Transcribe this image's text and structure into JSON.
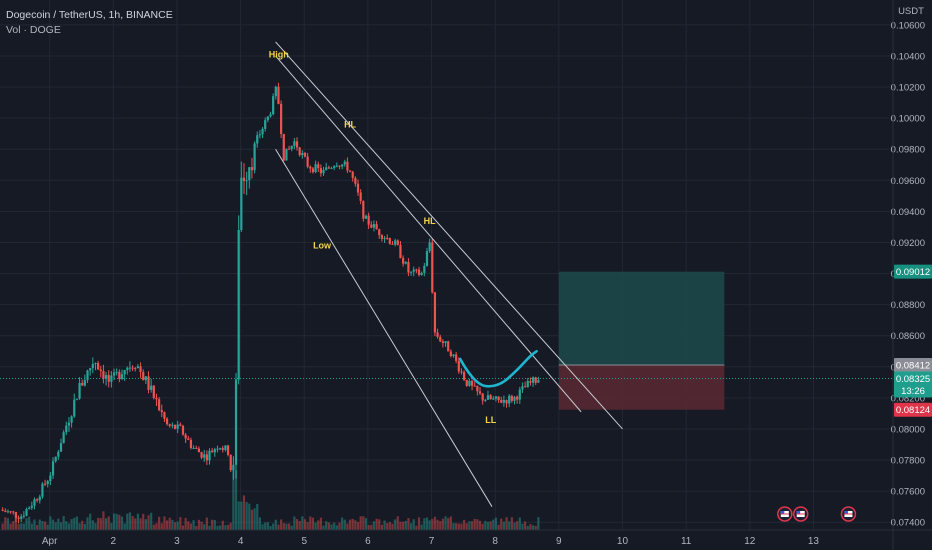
{
  "header": {
    "title": "Dogecoin / TetherUS, 1h, BINANCE",
    "volume_label": "Vol · DOGE"
  },
  "price_axis": {
    "unit": "USDT"
  },
  "colors": {
    "background": "#161a25",
    "up": "#26a69a",
    "down": "#ef5350",
    "grid": "#232734",
    "channel": "#c9cbd1",
    "cup": "#1fb6d0",
    "annotation": "#f5d547",
    "profit_zone": "#1c4a4a",
    "loss_zone": "#5a2a33"
  },
  "annotations": [
    {
      "text": "High",
      "x": 4.6,
      "y": 0.1039
    },
    {
      "text": "HL",
      "x": 5.72,
      "y": 0.0994
    },
    {
      "text": "HL",
      "x": 6.97,
      "y": 0.0932
    },
    {
      "text": "Low",
      "x": 5.28,
      "y": 0.0916
    },
    {
      "text": "LL",
      "x": 7.93,
      "y": 0.0804
    }
  ],
  "price_tags": [
    {
      "label": "0.09012",
      "price": 0.09012,
      "color": "#16907f",
      "timer": ""
    },
    {
      "label": "0.08412",
      "price": 0.08412,
      "color": "#8a8d96",
      "timer": ""
    },
    {
      "label": "0.08325",
      "price": 0.08325,
      "color": "#1f9e8e",
      "timer": "13:26"
    },
    {
      "label": "0.08124",
      "price": 0.08124,
      "color": "#e0344a",
      "timer": ""
    }
  ],
  "event_markers": [
    {
      "x": 12.55
    },
    {
      "x": 12.8
    },
    {
      "x": 13.55
    }
  ],
  "chart_data": {
    "type": "candlestick",
    "symbol": "DOGEUSDT",
    "interval": "1h",
    "exchange": "BINANCE",
    "x_ticks": [
      "Apr",
      "2",
      "3",
      "4",
      "5",
      "6",
      "7",
      "8",
      "9",
      "10",
      "11",
      "12",
      "13"
    ],
    "x_tick_positions": [
      1,
      2,
      3,
      4,
      5,
      6,
      7,
      8,
      9,
      10,
      11,
      12,
      13
    ],
    "xlim": [
      0.22,
      14.25
    ],
    "ylim": [
      0.0735,
      0.1076
    ],
    "y_ticks": [
      "0.07400",
      "0.07600",
      "0.07800",
      "0.08000",
      "0.08200",
      "0.08400",
      "0.08600",
      "0.08800",
      "0.09000",
      "0.09200",
      "0.09400",
      "0.09600",
      "0.09800",
      "0.10000",
      "0.10200",
      "0.10400",
      "0.10600"
    ],
    "price_path": [
      [
        0.22,
        0.0748
      ],
      [
        0.55,
        0.0744
      ],
      [
        0.8,
        0.0756
      ],
      [
        1.0,
        0.077
      ],
      [
        1.2,
        0.0795
      ],
      [
        1.45,
        0.0825
      ],
      [
        1.7,
        0.0845
      ],
      [
        1.95,
        0.0829
      ],
      [
        2.15,
        0.0839
      ],
      [
        2.35,
        0.0843
      ],
      [
        2.6,
        0.0824
      ],
      [
        2.85,
        0.0802
      ],
      [
        3.05,
        0.08
      ],
      [
        3.25,
        0.0788
      ],
      [
        3.45,
        0.0782
      ],
      [
        3.65,
        0.079
      ],
      [
        3.82,
        0.0785
      ],
      [
        3.88,
        0.076
      ],
      [
        3.93,
        0.083
      ],
      [
        3.98,
        0.096
      ],
      [
        4.1,
        0.097
      ],
      [
        4.3,
        0.099
      ],
      [
        4.45,
        0.1002
      ],
      [
        4.57,
        0.102
      ],
      [
        4.68,
        0.0975
      ],
      [
        4.85,
        0.0985
      ],
      [
        5.05,
        0.097
      ],
      [
        5.3,
        0.0965
      ],
      [
        5.5,
        0.0972
      ],
      [
        5.7,
        0.0968
      ],
      [
        5.85,
        0.095
      ],
      [
        5.95,
        0.0935
      ],
      [
        6.2,
        0.0926
      ],
      [
        6.45,
        0.0918
      ],
      [
        6.65,
        0.09
      ],
      [
        6.85,
        0.09
      ],
      [
        6.97,
        0.092
      ],
      [
        7.05,
        0.0862
      ],
      [
        7.3,
        0.085
      ],
      [
        7.55,
        0.083
      ],
      [
        7.8,
        0.082
      ],
      [
        8.05,
        0.0818
      ],
      [
        8.3,
        0.082
      ],
      [
        8.5,
        0.0828
      ],
      [
        8.68,
        0.08325
      ]
    ],
    "channel_lines": [
      {
        "from": [
          4.55,
          0.1049
        ],
        "to": [
          10.0,
          0.08
        ]
      },
      {
        "from": [
          4.55,
          0.104
        ],
        "to": [
          9.35,
          0.0811
        ]
      },
      {
        "from": [
          4.55,
          0.098
        ],
        "to": [
          7.95,
          0.075
        ]
      }
    ],
    "cup_path": [
      [
        7.45,
        0.0845
      ],
      [
        7.68,
        0.0828
      ],
      [
        8.05,
        0.0827
      ],
      [
        8.35,
        0.0838
      ],
      [
        8.55,
        0.0847
      ],
      [
        8.65,
        0.085
      ]
    ],
    "position": {
      "x_start": 9.0,
      "x_end": 11.6,
      "entry": 0.08412,
      "target": 0.09012,
      "stop": 0.08124
    },
    "volume_note": "hourly volume histogram along bottom"
  }
}
